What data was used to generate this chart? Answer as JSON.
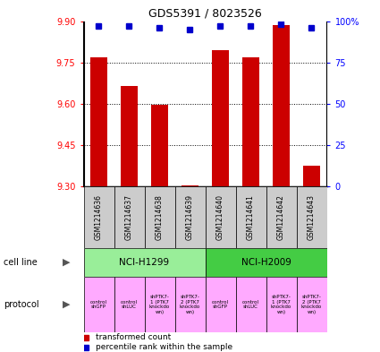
{
  "title": "GDS5391 / 8023526",
  "samples": [
    "GSM1214636",
    "GSM1214637",
    "GSM1214638",
    "GSM1214639",
    "GSM1214640",
    "GSM1214641",
    "GSM1214642",
    "GSM1214643"
  ],
  "transformed_count": [
    9.77,
    9.665,
    9.595,
    9.305,
    9.795,
    9.77,
    9.885,
    9.375
  ],
  "percentile_rank": [
    97,
    97,
    96,
    95,
    97,
    97,
    98,
    96
  ],
  "ylim_left": [
    9.3,
    9.9
  ],
  "ylim_right": [
    0,
    100
  ],
  "yticks_left": [
    9.3,
    9.45,
    9.6,
    9.75,
    9.9
  ],
  "yticks_right": [
    0,
    25,
    50,
    75,
    100
  ],
  "ytick_right_labels": [
    "0",
    "25",
    "50",
    "75",
    "100%"
  ],
  "bar_color": "#cc0000",
  "dot_color": "#0000cc",
  "sample_bg_color": "#cccccc",
  "cell_line_h1299_color": "#99ee99",
  "cell_line_h2009_color": "#44cc44",
  "protocol_color": "#ffaaff",
  "left_label_color": "#555555",
  "legend_items": [
    {
      "label": "transformed count",
      "color": "#cc0000"
    },
    {
      "label": "percentile rank within the sample",
      "color": "#0000cc"
    }
  ],
  "protocol_labels": [
    "control\nshGFP",
    "control\nshLUC",
    "shPTK7-\n1 (PTK7\nknockdo\nwn)",
    "shPTK7-\n2 (PTK7\nknockdo\nwn)",
    "control\nshGFP",
    "control\nshLUC",
    "shPTK7-\n1 (PTK7\nknockdo\nwn)",
    "shPTK7-\n2 (PTK7\nknockdo\nwn)"
  ]
}
